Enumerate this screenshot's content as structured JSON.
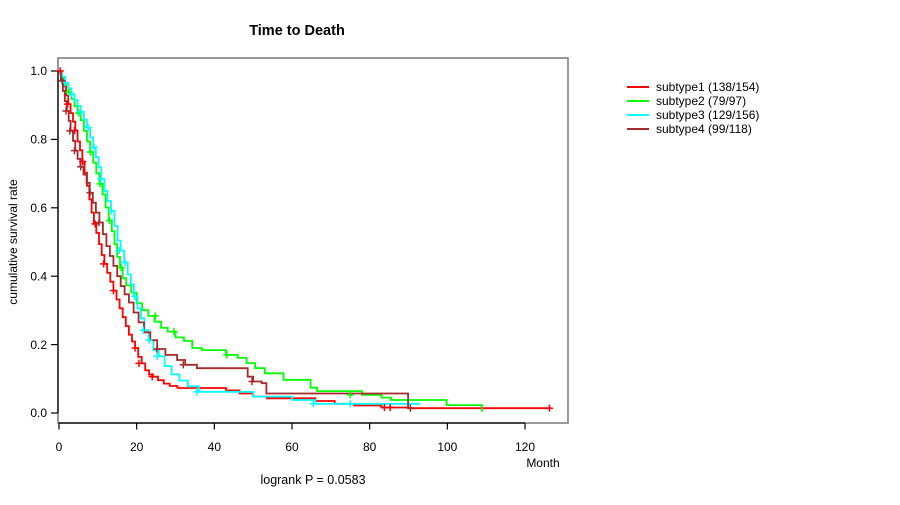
{
  "chart_data": {
    "type": "line",
    "subtype": "kaplan-meier-step",
    "title": "Time to Death",
    "xlabel": "Month",
    "ylabel": "cumulative survival rate",
    "annotation": "logrank P = 0.0583",
    "xlim": [
      0,
      131
    ],
    "ylim": [
      0.0,
      1.0
    ],
    "x_ticks": [
      0,
      20,
      40,
      60,
      80,
      100,
      120
    ],
    "y_ticks": [
      0.0,
      0.2,
      0.4,
      0.6,
      0.8,
      1.0
    ],
    "grid": false,
    "legend_position": "right-outside",
    "series": [
      {
        "name": "subtype1 (138/154)",
        "color": "#ff0000",
        "steps": [
          [
            0,
            1.0
          ],
          [
            0.6,
            0.981
          ],
          [
            1.2,
            0.955
          ],
          [
            1.8,
            0.929
          ],
          [
            2.4,
            0.903
          ],
          [
            3.0,
            0.877
          ],
          [
            3.6,
            0.852
          ],
          [
            4.2,
            0.826
          ],
          [
            4.8,
            0.794
          ],
          [
            5.4,
            0.768
          ],
          [
            6.0,
            0.735
          ],
          [
            6.6,
            0.703
          ],
          [
            7.2,
            0.664
          ],
          [
            7.8,
            0.625
          ],
          [
            8.4,
            0.586
          ],
          [
            9.0,
            0.553
          ],
          [
            9.6,
            0.527
          ],
          [
            10.3,
            0.494
          ],
          [
            11.0,
            0.462
          ],
          [
            11.7,
            0.436
          ],
          [
            12.4,
            0.41
          ],
          [
            13.2,
            0.384
          ],
          [
            14.0,
            0.358
          ],
          [
            14.8,
            0.332
          ],
          [
            15.6,
            0.306
          ],
          [
            16.4,
            0.28
          ],
          [
            17.2,
            0.254
          ],
          [
            18.0,
            0.229
          ],
          [
            18.8,
            0.209
          ],
          [
            19.6,
            0.19
          ],
          [
            20.4,
            0.164
          ],
          [
            21.3,
            0.145
          ],
          [
            22.2,
            0.125
          ],
          [
            23.2,
            0.112
          ],
          [
            24.2,
            0.106
          ],
          [
            25.5,
            0.096
          ],
          [
            27.0,
            0.086
          ],
          [
            28.5,
            0.079
          ],
          [
            30.5,
            0.073
          ],
          [
            43.0,
            0.066
          ],
          [
            46.5,
            0.057
          ],
          [
            50.0,
            0.048
          ],
          [
            53.5,
            0.043
          ],
          [
            66.0,
            0.035
          ],
          [
            71.0,
            0.027
          ],
          [
            76.0,
            0.022
          ],
          [
            83.0,
            0.016
          ],
          [
            90.0,
            0.014
          ],
          [
            126.8,
            0.014
          ]
        ],
        "censors": [
          [
            0.3,
            1.0
          ],
          [
            2.2,
            0.903
          ],
          [
            4.0,
            0.826
          ],
          [
            6.1,
            0.735
          ],
          [
            9.3,
            0.553
          ],
          [
            11.5,
            0.436
          ],
          [
            14.0,
            0.358
          ],
          [
            19.6,
            0.19
          ],
          [
            20.6,
            0.145
          ],
          [
            24.0,
            0.106
          ],
          [
            83.8,
            0.016
          ],
          [
            85.3,
            0.016
          ],
          [
            126.3,
            0.014
          ]
        ]
      },
      {
        "name": "subtype2 (79/97)",
        "color": "#00ff00",
        "steps": [
          [
            0,
            1.0
          ],
          [
            0.8,
            0.979
          ],
          [
            1.6,
            0.959
          ],
          [
            2.4,
            0.938
          ],
          [
            3.2,
            0.918
          ],
          [
            4.0,
            0.897
          ],
          [
            4.8,
            0.877
          ],
          [
            5.6,
            0.856
          ],
          [
            6.4,
            0.825
          ],
          [
            7.2,
            0.794
          ],
          [
            8.0,
            0.763
          ],
          [
            8.8,
            0.732
          ],
          [
            9.6,
            0.701
          ],
          [
            10.4,
            0.67
          ],
          [
            11.2,
            0.639
          ],
          [
            12.0,
            0.601
          ],
          [
            12.8,
            0.563
          ],
          [
            13.6,
            0.532
          ],
          [
            14.3,
            0.494
          ],
          [
            15.0,
            0.456
          ],
          [
            15.7,
            0.425
          ],
          [
            16.4,
            0.394
          ],
          [
            17.3,
            0.373
          ],
          [
            18.6,
            0.352
          ],
          [
            20.0,
            0.321
          ],
          [
            21.4,
            0.301
          ],
          [
            23.0,
            0.284
          ],
          [
            24.6,
            0.267
          ],
          [
            26.3,
            0.249
          ],
          [
            28.0,
            0.238
          ],
          [
            30.0,
            0.221
          ],
          [
            32.2,
            0.211
          ],
          [
            34.3,
            0.19
          ],
          [
            36.8,
            0.184
          ],
          [
            43.0,
            0.17
          ],
          [
            46.0,
            0.161
          ],
          [
            48.3,
            0.146
          ],
          [
            50.5,
            0.131
          ],
          [
            53.0,
            0.116
          ],
          [
            57.8,
            0.097
          ],
          [
            64.8,
            0.074
          ],
          [
            66.5,
            0.064
          ],
          [
            78.0,
            0.053
          ],
          [
            83.0,
            0.045
          ],
          [
            85.5,
            0.038
          ],
          [
            99.8,
            0.023
          ],
          [
            108.9,
            0.004
          ]
        ],
        "censors": [
          [
            2.6,
            0.938
          ],
          [
            5.0,
            0.877
          ],
          [
            8.1,
            0.763
          ],
          [
            10.6,
            0.67
          ],
          [
            13.0,
            0.563
          ],
          [
            16.0,
            0.425
          ],
          [
            24.8,
            0.284
          ],
          [
            29.6,
            0.238
          ],
          [
            43.2,
            0.17
          ],
          [
            75.0,
            0.053
          ]
        ]
      },
      {
        "name": "subtype3 (129/156)",
        "color": "#00ffff",
        "steps": [
          [
            0,
            1.0
          ],
          [
            0.8,
            0.983
          ],
          [
            1.6,
            0.966
          ],
          [
            2.4,
            0.949
          ],
          [
            3.2,
            0.932
          ],
          [
            4.0,
            0.915
          ],
          [
            4.8,
            0.898
          ],
          [
            5.6,
            0.881
          ],
          [
            6.4,
            0.858
          ],
          [
            7.2,
            0.835
          ],
          [
            8.0,
            0.806
          ],
          [
            8.8,
            0.777
          ],
          [
            9.5,
            0.748
          ],
          [
            10.2,
            0.719
          ],
          [
            10.9,
            0.684
          ],
          [
            11.7,
            0.649
          ],
          [
            12.5,
            0.62
          ],
          [
            13.4,
            0.591
          ],
          [
            14.3,
            0.547
          ],
          [
            15.1,
            0.504
          ],
          [
            15.9,
            0.475
          ],
          [
            16.8,
            0.44
          ],
          [
            17.7,
            0.405
          ],
          [
            18.5,
            0.376
          ],
          [
            19.3,
            0.341
          ],
          [
            20.2,
            0.306
          ],
          [
            21.1,
            0.277
          ],
          [
            22.0,
            0.242
          ],
          [
            23.1,
            0.213
          ],
          [
            24.3,
            0.184
          ],
          [
            25.7,
            0.166
          ],
          [
            27.2,
            0.137
          ],
          [
            29.0,
            0.113
          ],
          [
            31.0,
            0.095
          ],
          [
            33.2,
            0.078
          ],
          [
            36.0,
            0.062
          ],
          [
            50.0,
            0.048
          ],
          [
            60.0,
            0.038
          ],
          [
            66.0,
            0.027
          ],
          [
            93.0,
            0.027
          ]
        ],
        "censors": [
          [
            1.5,
            0.966
          ],
          [
            3.1,
            0.932
          ],
          [
            5.5,
            0.881
          ],
          [
            7.5,
            0.835
          ],
          [
            9.0,
            0.777
          ],
          [
            10.8,
            0.684
          ],
          [
            13.5,
            0.591
          ],
          [
            15.5,
            0.475
          ],
          [
            17.0,
            0.44
          ],
          [
            19.5,
            0.341
          ],
          [
            21.7,
            0.242
          ],
          [
            23.2,
            0.213
          ],
          [
            25.3,
            0.166
          ],
          [
            35.5,
            0.062
          ],
          [
            65.5,
            0.027
          ],
          [
            75.0,
            0.027
          ]
        ]
      },
      {
        "name": "subtype4 (99/118)",
        "color": "#a52a2a",
        "steps": [
          [
            0,
            1.0
          ],
          [
            0.5,
            0.971
          ],
          [
            1.0,
            0.942
          ],
          [
            1.5,
            0.912
          ],
          [
            2.0,
            0.883
          ],
          [
            2.5,
            0.854
          ],
          [
            3.0,
            0.825
          ],
          [
            3.6,
            0.796
          ],
          [
            4.2,
            0.767
          ],
          [
            4.8,
            0.743
          ],
          [
            5.5,
            0.72
          ],
          [
            6.3,
            0.697
          ],
          [
            7.1,
            0.673
          ],
          [
            7.9,
            0.644
          ],
          [
            8.7,
            0.615
          ],
          [
            9.5,
            0.586
          ],
          [
            10.4,
            0.557
          ],
          [
            11.3,
            0.523
          ],
          [
            12.2,
            0.488
          ],
          [
            13.1,
            0.459
          ],
          [
            14.0,
            0.43
          ],
          [
            15.0,
            0.4
          ],
          [
            15.9,
            0.371
          ],
          [
            16.9,
            0.347
          ],
          [
            18.0,
            0.323
          ],
          [
            19.2,
            0.294
          ],
          [
            20.5,
            0.265
          ],
          [
            21.9,
            0.236
          ],
          [
            23.5,
            0.213
          ],
          [
            25.3,
            0.187
          ],
          [
            27.4,
            0.17
          ],
          [
            30.4,
            0.155
          ],
          [
            32.5,
            0.141
          ],
          [
            35.5,
            0.131
          ],
          [
            48.6,
            0.106
          ],
          [
            50.0,
            0.092
          ],
          [
            52.2,
            0.087
          ],
          [
            53.4,
            0.057
          ],
          [
            89.9,
            0.014
          ],
          [
            91.5,
            0.014
          ]
        ],
        "censors": [
          [
            0.8,
            0.971
          ],
          [
            1.8,
            0.883
          ],
          [
            2.8,
            0.825
          ],
          [
            4.0,
            0.767
          ],
          [
            5.6,
            0.72
          ],
          [
            8.0,
            0.644
          ],
          [
            10.3,
            0.557
          ],
          [
            25.2,
            0.187
          ],
          [
            32.0,
            0.141
          ],
          [
            49.7,
            0.092
          ],
          [
            90.5,
            0.014
          ]
        ]
      }
    ]
  }
}
